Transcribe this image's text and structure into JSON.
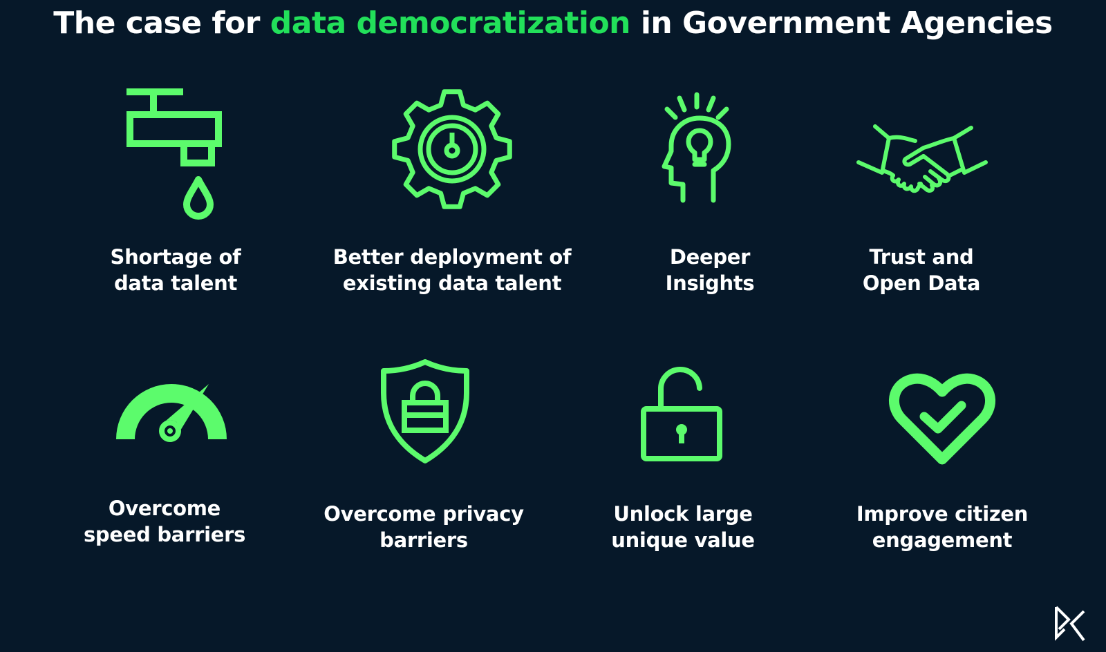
{
  "title": {
    "before": "The case for ",
    "highlight": "data democratization",
    "after": " in Government Agencies"
  },
  "colors": {
    "background": "#061829",
    "accent": "#22e05a",
    "icon": "#5cfb6c",
    "text": "#ffffff"
  },
  "items": [
    {
      "icon": "faucet-drop-icon",
      "line1": "Shortage of",
      "line2": "data talent"
    },
    {
      "icon": "gear-gauge-icon",
      "line1": "Better deployment of",
      "line2": "existing data talent"
    },
    {
      "icon": "head-lightbulb-icon",
      "line1": "Deeper",
      "line2": "Insights"
    },
    {
      "icon": "handshake-icon",
      "line1": "Trust and",
      "line2": "Open Data"
    },
    {
      "icon": "speedometer-icon",
      "line1": "Overcome",
      "line2": "speed barriers"
    },
    {
      "icon": "shield-lock-icon",
      "line1": "Overcome privacy",
      "line2": "barriers"
    },
    {
      "icon": "unlocked-padlock-icon",
      "line1": "Unlock large",
      "line2": "unique value"
    },
    {
      "icon": "heart-check-icon",
      "line1": "Improve citizen",
      "line2": "engagement"
    }
  ],
  "logo": {
    "icon": "brand-logo-icon"
  }
}
